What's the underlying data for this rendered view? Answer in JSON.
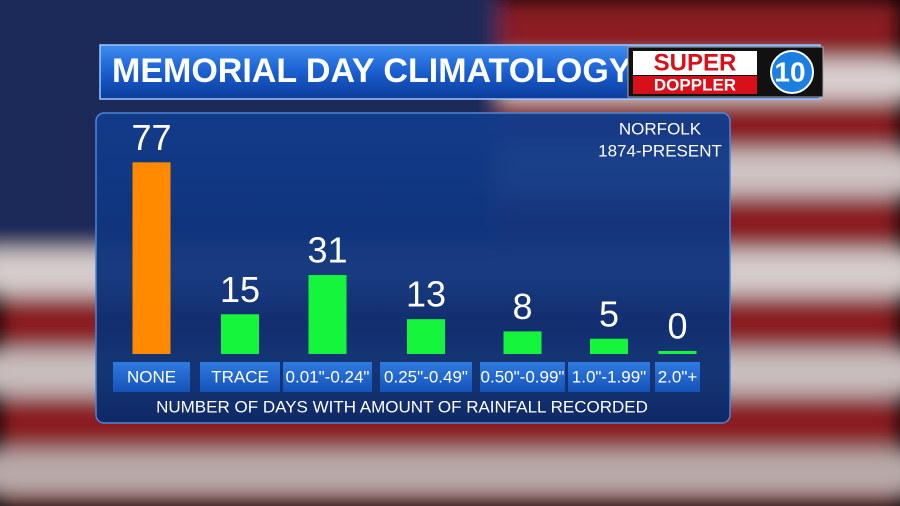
{
  "header": {
    "title": "MEMORIAL DAY CLIMATOLOGY",
    "logo": {
      "top": "SUPER",
      "bottom": "DOPPLER",
      "number": "10"
    }
  },
  "chart_data": {
    "type": "bar",
    "subtitle": [
      "NORFOLK",
      "1874-PRESENT"
    ],
    "x_label": "NUMBER OF DAYS WITH AMOUNT OF RAINFALL RECORDED",
    "categories": [
      "NONE",
      "TRACE",
      "0.01\"-0.24\"",
      "0.25\"-0.49\"",
      "0.50\"-0.99\"",
      "1.0\"-1.99\"",
      "2.0\"+"
    ],
    "values": [
      77,
      15,
      31,
      13,
      8,
      5,
      0
    ],
    "colors": [
      "#ff8a00",
      "#14f53c",
      "#14f53c",
      "#14f53c",
      "#14f53c",
      "#14f53c",
      "#14f53c"
    ]
  }
}
